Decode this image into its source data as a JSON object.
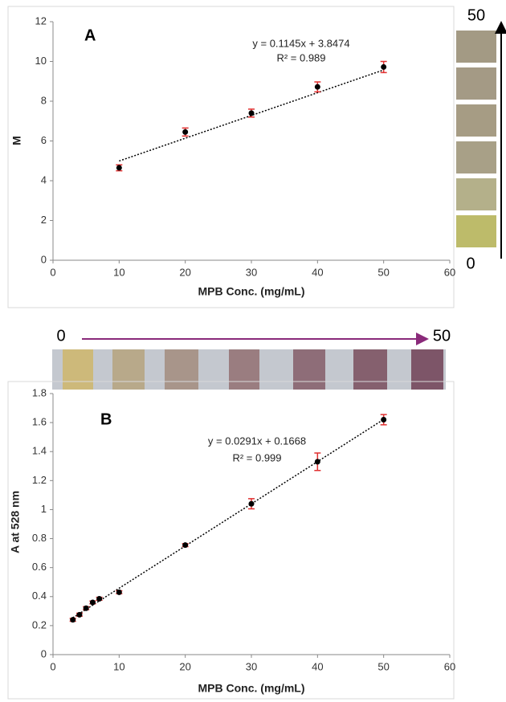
{
  "chart_data": [
    {
      "type": "scatter",
      "panel_label": "A",
      "equation": "y = 0.1145x + 3.8474",
      "r_squared": "R² = 0.989",
      "x_label": "MPB Conc. (mg/mL)",
      "y_label": "M",
      "x": [
        10,
        20,
        30,
        40,
        50
      ],
      "values": [
        4.65,
        6.45,
        7.4,
        8.72,
        9.72
      ],
      "errors": [
        0.15,
        0.2,
        0.2,
        0.25,
        0.28
      ],
      "trendline": {
        "slope": 0.1145,
        "intercept": 3.8474
      },
      "color": "#000000",
      "error_color": "#e03030",
      "xlim": [
        0,
        60
      ],
      "xticks": [
        0,
        10,
        20,
        30,
        40,
        50,
        60
      ],
      "ylim": [
        0,
        12
      ],
      "yticks": [
        0,
        2,
        4,
        6,
        8,
        10,
        12
      ],
      "strip_labels": [
        "50",
        "0"
      ]
    },
    {
      "type": "scatter",
      "panel_label": "B",
      "equation": "y = 0.0291x + 0.1668",
      "r_squared": "R² = 0.999",
      "x_label": "MPB Conc. (mg/mL)",
      "y_label": "A at 528 nm",
      "x": [
        3,
        4,
        5,
        6,
        7,
        10,
        20,
        30,
        40,
        50
      ],
      "values": [
        0.24,
        0.275,
        0.32,
        0.36,
        0.385,
        0.43,
        0.755,
        1.04,
        1.33,
        1.62
      ],
      "errors": [
        0.01,
        0.01,
        0.01,
        0.01,
        0.01,
        0.01,
        0.01,
        0.035,
        0.06,
        0.035
      ],
      "trendline": {
        "slope": 0.0291,
        "intercept": 0.1668
      },
      "color": "#000000",
      "error_color": "#e03030",
      "xlim": [
        0,
        60
      ],
      "xticks": [
        0,
        10,
        20,
        30,
        40,
        50,
        60
      ],
      "ylim": [
        0,
        1.8
      ],
      "yticks": [
        0,
        0.2,
        0.4,
        0.6,
        0.8,
        1,
        1.2,
        1.4,
        1.6,
        1.8
      ],
      "strip_labels": [
        "0",
        "50"
      ]
    }
  ]
}
